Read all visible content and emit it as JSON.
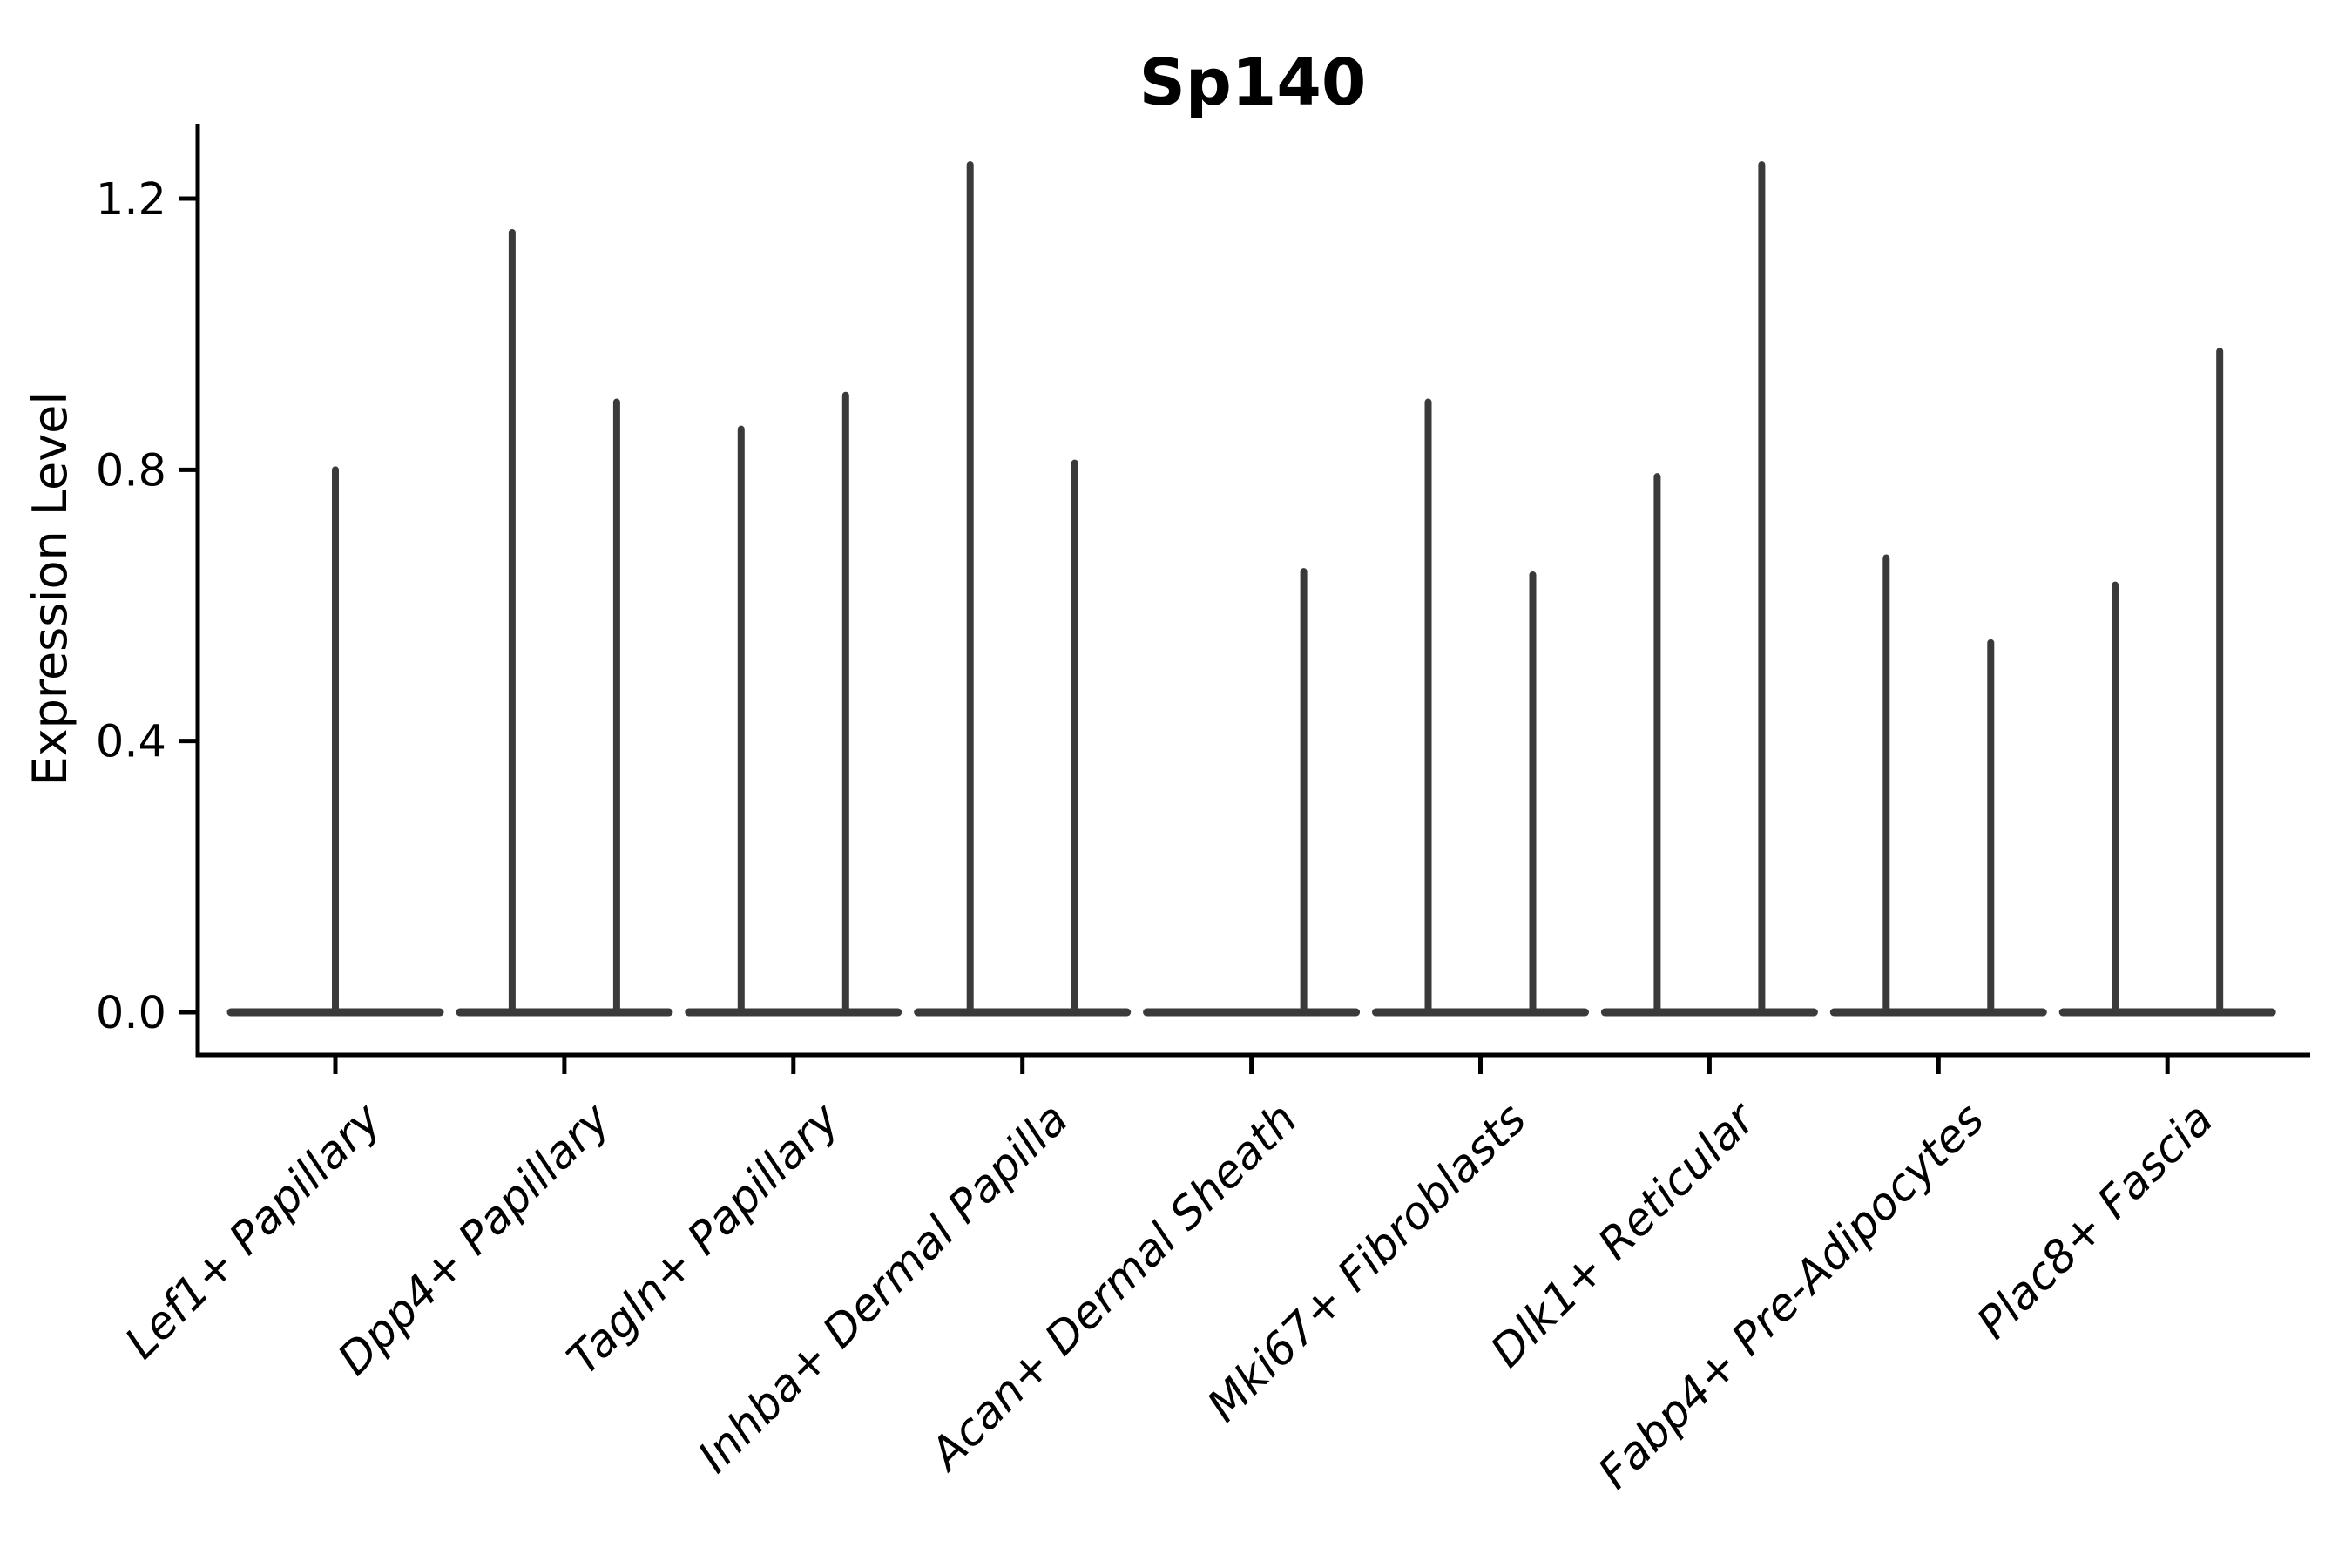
{
  "title": "Sp140",
  "ylabel": "Expression Level",
  "chart_data": {
    "type": "violin",
    "title": "Sp140",
    "xlabel": "",
    "ylabel": "Expression Level",
    "ylim": [
      0,
      1.31
    ],
    "grid": false,
    "legend": "none",
    "x_tick_rotation": 45,
    "axis_color": "#000000",
    "violin_color": "#3a3a3a",
    "y_ticks": [
      {
        "value": 0.0,
        "label": "0.0"
      },
      {
        "value": 0.4,
        "label": "0.4"
      },
      {
        "value": 0.8,
        "label": "0.8"
      },
      {
        "value": 1.2,
        "label": "1.2"
      }
    ],
    "categories": [
      {
        "label": "Lef1+ Papillary",
        "spikes": [
          {
            "pos": "center",
            "max": 0.8
          }
        ]
      },
      {
        "label": "Dpp4+ Papillary",
        "spikes": [
          {
            "pos": "left",
            "max": 1.15
          },
          {
            "pos": "right",
            "max": 0.9
          }
        ]
      },
      {
        "label": "Tagln+ Papillary",
        "spikes": [
          {
            "pos": "left",
            "max": 0.86
          },
          {
            "pos": "right",
            "max": 0.91
          }
        ]
      },
      {
        "label": "Inhba+ Dermal Papilla",
        "spikes": [
          {
            "pos": "left",
            "max": 1.25
          },
          {
            "pos": "right",
            "max": 0.81
          }
        ]
      },
      {
        "label": "Acan+ Dermal Sheath",
        "spikes": [
          {
            "pos": "right",
            "max": 0.65
          }
        ]
      },
      {
        "label": "Mki67+ Fibroblasts",
        "spikes": [
          {
            "pos": "left",
            "max": 0.9
          },
          {
            "pos": "right",
            "max": 0.645
          }
        ]
      },
      {
        "label": "Dlk1+ Reticular",
        "spikes": [
          {
            "pos": "left",
            "max": 0.79
          },
          {
            "pos": "right",
            "max": 1.25
          }
        ]
      },
      {
        "label": "Fabp4+ Pre-Adipocytes",
        "spikes": [
          {
            "pos": "left",
            "max": 0.67
          },
          {
            "pos": "right",
            "max": 0.545
          }
        ]
      },
      {
        "label": "Plac8+ Fascia",
        "spikes": [
          {
            "pos": "left",
            "max": 0.63
          },
          {
            "pos": "right",
            "max": 0.975
          }
        ]
      }
    ]
  }
}
